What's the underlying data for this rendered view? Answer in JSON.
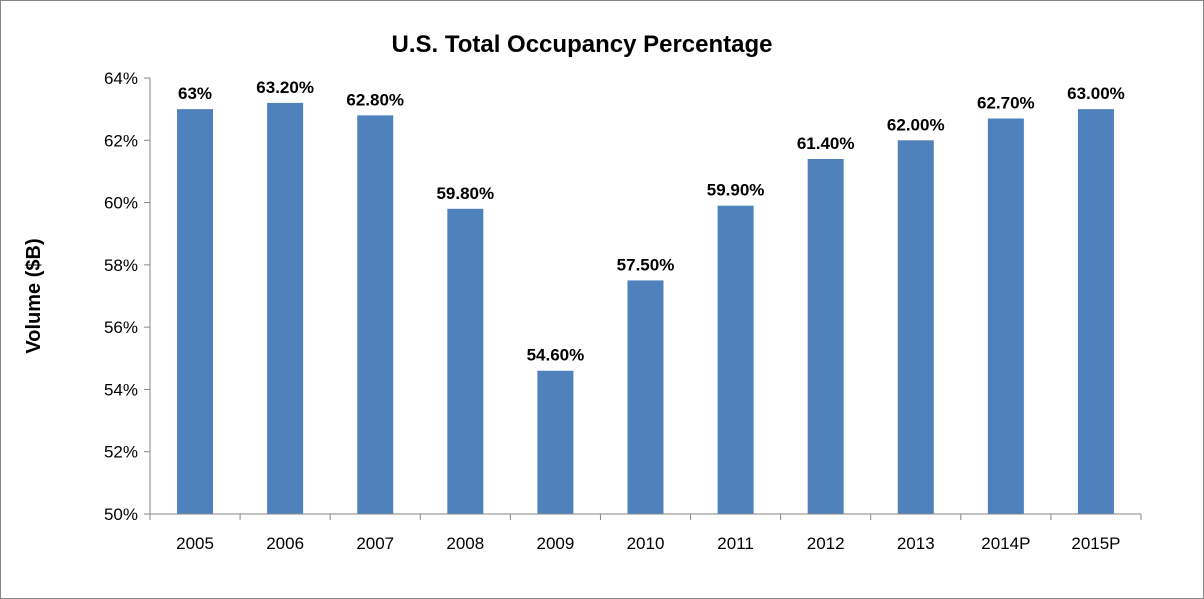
{
  "chart_data": {
    "type": "bar",
    "title": "U.S. Total Occupancy Percentage",
    "ylabel": "Volume ($B)",
    "xlabel": "",
    "categories": [
      "2005",
      "2006",
      "2007",
      "2008",
      "2009",
      "2010",
      "2011",
      "2012",
      "2013",
      "2014P",
      "2015P"
    ],
    "values": [
      63,
      63.2,
      62.8,
      59.8,
      54.6,
      57.5,
      59.9,
      61.4,
      62.0,
      62.7,
      63.0
    ],
    "data_labels": [
      "63%",
      "63.20%",
      "62.80%",
      "59.80%",
      "54.60%",
      "57.50%",
      "59.90%",
      "61.40%",
      "62.00%",
      "62.70%",
      "63.00%"
    ],
    "ylim": [
      50,
      64
    ],
    "yticks": [
      50,
      52,
      54,
      56,
      58,
      60,
      62,
      64
    ],
    "ytick_labels": [
      "50%",
      "52%",
      "54%",
      "56%",
      "58%",
      "60%",
      "62%",
      "64%"
    ],
    "grid": false,
    "legend": "none",
    "colors": {
      "bar": "#4f81bd",
      "axis": "#868686"
    }
  }
}
